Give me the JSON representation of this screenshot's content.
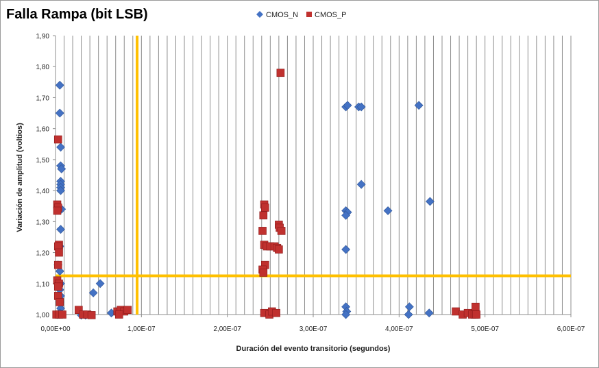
{
  "chart_data": {
    "type": "scatter",
    "title": "Falla Rampa (bit LSB)",
    "xlabel": "Duración del evento transitorio (segundos)",
    "ylabel": "Variación de amplitud (voltios)",
    "xlim": [
      0,
      6e-07
    ],
    "ylim": [
      1.0,
      1.9
    ],
    "x_ticks": [
      0,
      1e-07,
      2e-07,
      3e-07,
      4e-07,
      5e-07,
      6e-07
    ],
    "x_tick_labels": [
      "0,00E+00",
      "1,00E-07",
      "2,00E-07",
      "3,00E-07",
      "4,00E-07",
      "5,00E-07",
      "6,00E-07"
    ],
    "y_ticks": [
      1.0,
      1.1,
      1.2,
      1.3,
      1.4,
      1.5,
      1.6,
      1.7,
      1.8,
      1.9
    ],
    "y_tick_labels": [
      "1,00",
      "1,10",
      "1,20",
      "1,30",
      "1,40",
      "1,50",
      "1,60",
      "1,70",
      "1,80",
      "1,90"
    ],
    "vertical_grid_step": 1e-08,
    "legend_position": "top-center",
    "reference_lines": [
      {
        "orientation": "vertical",
        "value": 9.5e-08,
        "color": "#FFC000"
      },
      {
        "orientation": "horizontal",
        "value": 1.125,
        "color": "#FFC000"
      }
    ],
    "series": [
      {
        "name": "CMOS_N",
        "marker": "diamond",
        "color": "#4472C4",
        "points": [
          [
            5e-09,
            1.74
          ],
          [
            5e-09,
            1.65
          ],
          [
            6e-09,
            1.54
          ],
          [
            6e-09,
            1.48
          ],
          [
            7e-09,
            1.47
          ],
          [
            6e-09,
            1.43
          ],
          [
            6e-09,
            1.42
          ],
          [
            6e-09,
            1.41
          ],
          [
            6e-09,
            1.4
          ],
          [
            7e-09,
            1.34
          ],
          [
            6e-09,
            1.275
          ],
          [
            5e-09,
            1.22
          ],
          [
            3e-09,
            1.16
          ],
          [
            5e-09,
            1.14
          ],
          [
            6e-09,
            1.1
          ],
          [
            5e-09,
            1.08
          ],
          [
            6e-09,
            1.06
          ],
          [
            5e-09,
            1.04
          ],
          [
            6e-09,
            1.02
          ],
          [
            5e-09,
            1.005
          ],
          [
            2e-09,
            1.0
          ],
          [
            3e-08,
            0.998
          ],
          [
            3.5e-08,
            0.998
          ],
          [
            4.4e-08,
            1.07
          ],
          [
            5.2e-08,
            1.1
          ],
          [
            6.5e-08,
            1.005
          ],
          [
            3.38e-07,
            1.67
          ],
          [
            3.4e-07,
            1.675
          ],
          [
            3.53e-07,
            1.67
          ],
          [
            3.56e-07,
            1.67
          ],
          [
            4.23e-07,
            1.675
          ],
          [
            3.56e-07,
            1.42
          ],
          [
            3.38e-07,
            1.335
          ],
          [
            3.4e-07,
            1.33
          ],
          [
            3.38e-07,
            1.32
          ],
          [
            3.87e-07,
            1.335
          ],
          [
            4.36e-07,
            1.365
          ],
          [
            3.38e-07,
            1.21
          ],
          [
            3.38e-07,
            1.025
          ],
          [
            3.39e-07,
            1.01
          ],
          [
            3.38e-07,
            1.0
          ],
          [
            4.12e-07,
            1.025
          ],
          [
            4.11e-07,
            1.0
          ],
          [
            4.35e-07,
            1.005
          ]
        ]
      },
      {
        "name": "CMOS_P",
        "marker": "square",
        "color": "#C0312F",
        "points": [
          [
            3e-09,
            1.565
          ],
          [
            2e-09,
            1.355
          ],
          [
            3e-09,
            1.345
          ],
          [
            2e-09,
            1.335
          ],
          [
            4e-09,
            1.225
          ],
          [
            3e-09,
            1.22
          ],
          [
            4e-09,
            1.2
          ],
          [
            3e-09,
            1.16
          ],
          [
            2e-09,
            1.11
          ],
          [
            4e-09,
            1.1
          ],
          [
            3e-09,
            1.09
          ],
          [
            3e-09,
            1.06
          ],
          [
            5e-09,
            1.04
          ],
          [
            1e-09,
            1.0
          ],
          [
            4e-09,
            1.0
          ],
          [
            8e-09,
            1.0
          ],
          [
            2.7e-08,
            1.015
          ],
          [
            3.2e-08,
            1.0
          ],
          [
            3.7e-08,
            1.0
          ],
          [
            4.2e-08,
            0.998
          ],
          [
            7.2e-08,
            1.01
          ],
          [
            7.6e-08,
            1.015
          ],
          [
            8e-08,
            1.01
          ],
          [
            8.4e-08,
            1.015
          ],
          [
            7.4e-08,
            1.0
          ],
          [
            2.62e-07,
            1.78
          ],
          [
            2.43e-07,
            1.355
          ],
          [
            2.44e-07,
            1.345
          ],
          [
            2.42e-07,
            1.32
          ],
          [
            2.41e-07,
            1.27
          ],
          [
            2.6e-07,
            1.29
          ],
          [
            2.61e-07,
            1.28
          ],
          [
            2.63e-07,
            1.27
          ],
          [
            2.43e-07,
            1.225
          ],
          [
            2.46e-07,
            1.22
          ],
          [
            2.5e-07,
            1.22
          ],
          [
            2.55e-07,
            1.22
          ],
          [
            2.58e-07,
            1.215
          ],
          [
            2.6e-07,
            1.21
          ],
          [
            2.44e-07,
            1.16
          ],
          [
            2.41e-07,
            1.145
          ],
          [
            2.42e-07,
            1.135
          ],
          [
            2.43e-07,
            1.005
          ],
          [
            2.49e-07,
            1.0
          ],
          [
            2.52e-07,
            1.01
          ],
          [
            2.57e-07,
            1.005
          ],
          [
            4.66e-07,
            1.01
          ],
          [
            4.74e-07,
            1.0
          ],
          [
            4.8e-07,
            1.005
          ],
          [
            4.85e-07,
            1.0
          ],
          [
            4.89e-07,
            1.025
          ],
          [
            4.88e-07,
            1.0
          ],
          [
            4.9e-07,
            1.0
          ]
        ]
      }
    ]
  }
}
